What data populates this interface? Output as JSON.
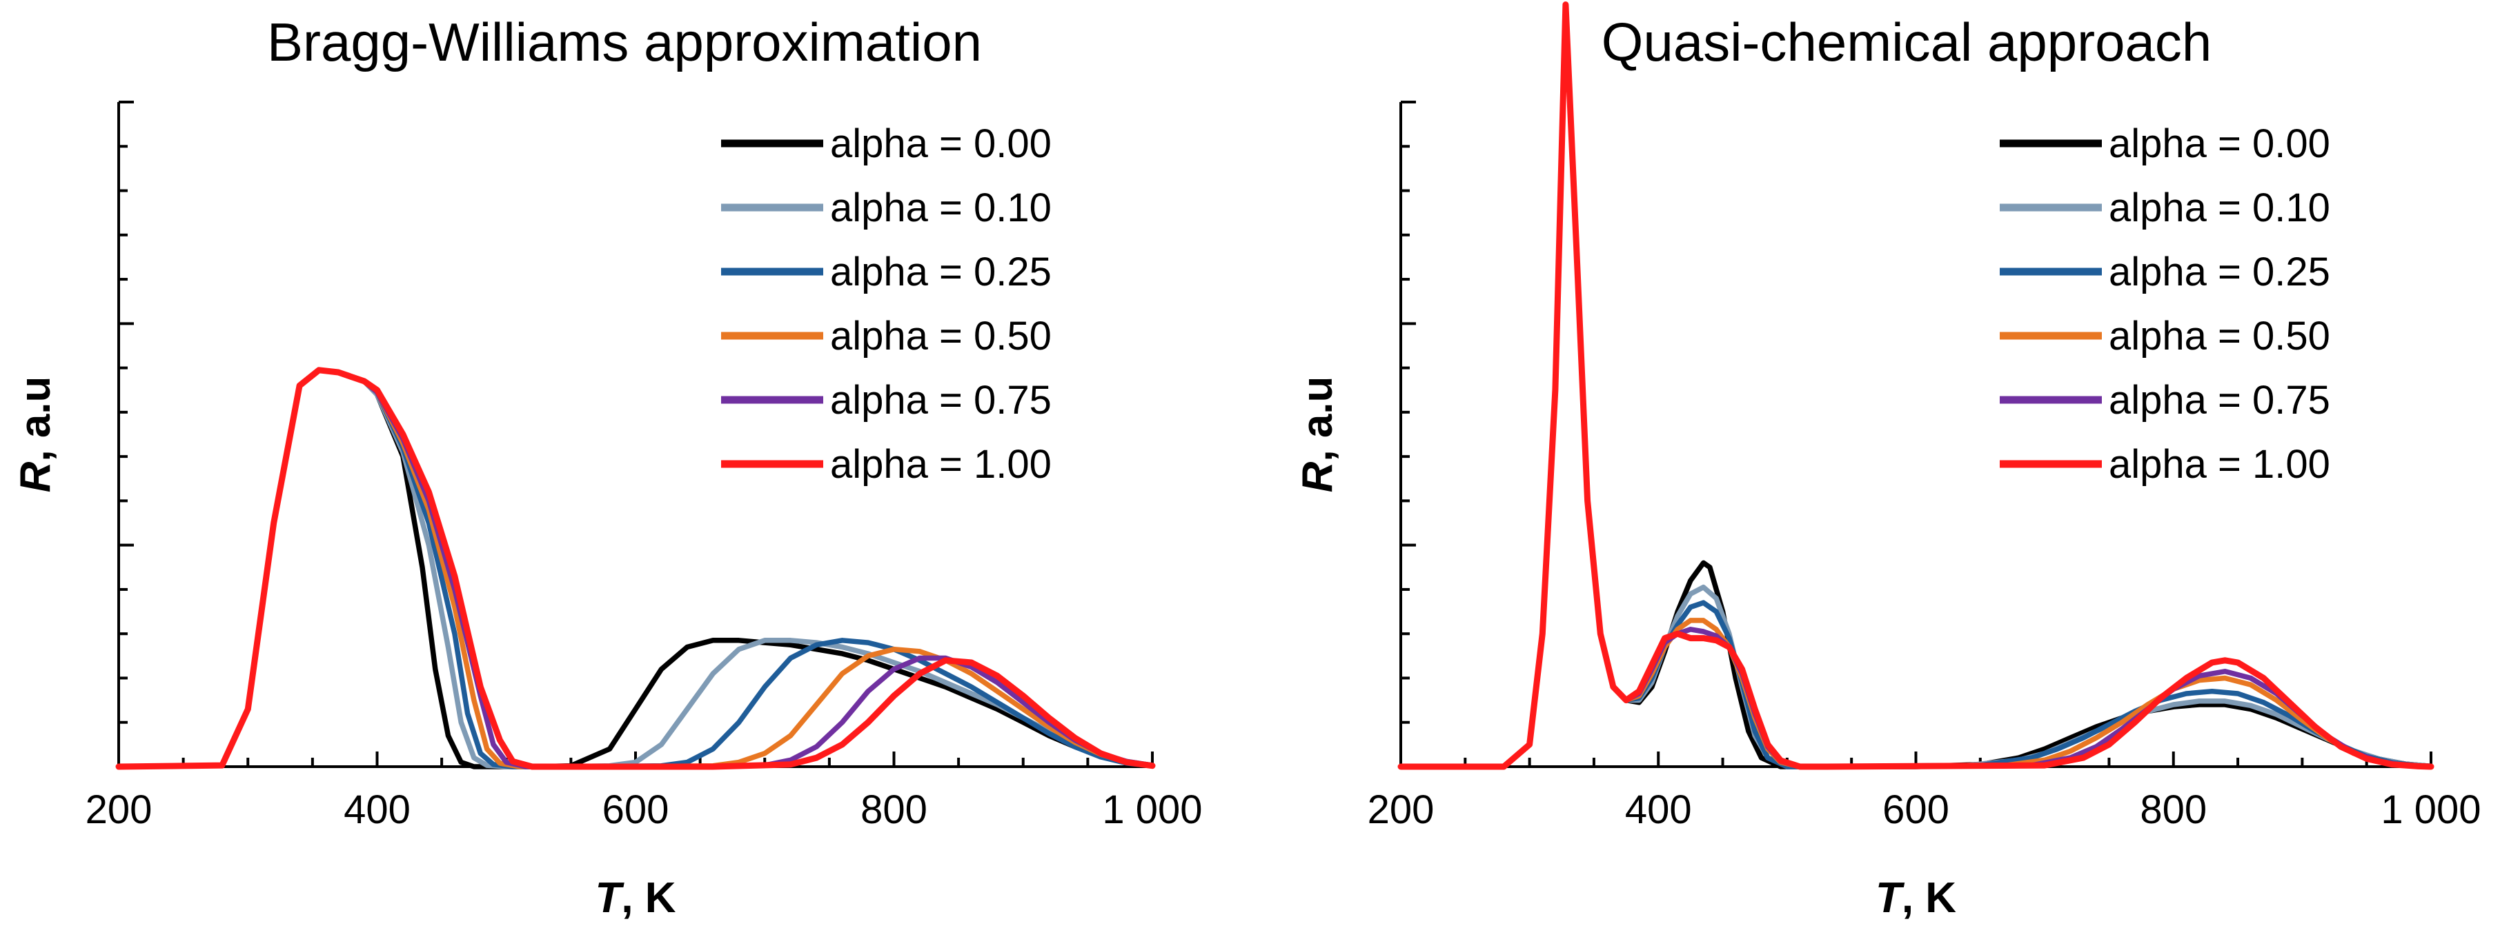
{
  "chart_data": [
    {
      "type": "line",
      "title": "Bragg-Williams approximation",
      "xlabel_italic": "T",
      "xlabel_rest": ", K",
      "ylabel_italic": "R",
      "ylabel_rest": ", a.u",
      "xlim": [
        200,
        1000
      ],
      "ylim": [
        0,
        1.5
      ],
      "xticks": [
        200,
        400,
        600,
        800,
        1000
      ],
      "xtick_labels": [
        "200",
        "400",
        "600",
        "800",
        "1 000"
      ],
      "legend_position": "top-right",
      "series": [
        {
          "name": "alpha = 0.00",
          "color": "#000000",
          "x": [
            200,
            280,
            300,
            320,
            340,
            355,
            370,
            390,
            400,
            420,
            435,
            445,
            455,
            465,
            475,
            490,
            520,
            550,
            580,
            600,
            620,
            640,
            660,
            680,
            700,
            720,
            740,
            760,
            780,
            800,
            820,
            840,
            860,
            880,
            900,
            920,
            940,
            960,
            980,
            1000
          ],
          "y": [
            0,
            0.003,
            0.13,
            0.55,
            0.86,
            0.895,
            0.89,
            0.87,
            0.84,
            0.7,
            0.45,
            0.22,
            0.07,
            0.01,
            0,
            0,
            0,
            0.002,
            0.04,
            0.13,
            0.22,
            0.27,
            0.285,
            0.285,
            0.28,
            0.275,
            0.265,
            0.255,
            0.24,
            0.22,
            0.2,
            0.18,
            0.155,
            0.13,
            0.1,
            0.07,
            0.045,
            0.025,
            0.01,
            0.003
          ]
        },
        {
          "name": "alpha = 0.10",
          "color": "#7f9bb5",
          "x": [
            200,
            280,
            300,
            320,
            340,
            355,
            370,
            390,
            400,
            420,
            440,
            455,
            465,
            475,
            485,
            500,
            540,
            580,
            600,
            620,
            640,
            660,
            680,
            700,
            720,
            740,
            760,
            780,
            800,
            820,
            840,
            860,
            880,
            900,
            920,
            940,
            960,
            980,
            1000
          ],
          "y": [
            0,
            0.003,
            0.13,
            0.55,
            0.86,
            0.895,
            0.89,
            0.87,
            0.84,
            0.71,
            0.5,
            0.27,
            0.1,
            0.02,
            0.003,
            0,
            0,
            0.002,
            0.01,
            0.05,
            0.13,
            0.21,
            0.265,
            0.285,
            0.285,
            0.28,
            0.27,
            0.255,
            0.235,
            0.215,
            0.19,
            0.165,
            0.14,
            0.11,
            0.08,
            0.05,
            0.028,
            0.012,
            0.003
          ]
        },
        {
          "name": "alpha = 0.25",
          "color": "#1f5d99",
          "x": [
            200,
            280,
            300,
            320,
            340,
            355,
            370,
            390,
            400,
            420,
            440,
            460,
            470,
            480,
            490,
            505,
            560,
            620,
            640,
            660,
            680,
            700,
            720,
            740,
            760,
            780,
            800,
            820,
            840,
            860,
            880,
            900,
            920,
            940,
            960,
            980,
            1000
          ],
          "y": [
            0,
            0.003,
            0.13,
            0.55,
            0.86,
            0.895,
            0.89,
            0.87,
            0.845,
            0.72,
            0.55,
            0.3,
            0.12,
            0.03,
            0.005,
            0,
            0,
            0.002,
            0.01,
            0.04,
            0.1,
            0.18,
            0.245,
            0.275,
            0.285,
            0.28,
            0.265,
            0.24,
            0.21,
            0.18,
            0.145,
            0.11,
            0.075,
            0.045,
            0.022,
            0.008,
            0.002
          ]
        },
        {
          "name": "alpha = 0.50",
          "color": "#e87722",
          "x": [
            200,
            280,
            300,
            320,
            340,
            355,
            370,
            390,
            400,
            420,
            440,
            460,
            475,
            485,
            495,
            510,
            600,
            660,
            680,
            700,
            720,
            740,
            760,
            780,
            800,
            820,
            840,
            860,
            880,
            900,
            920,
            940,
            960,
            980,
            1000
          ],
          "y": [
            0,
            0.003,
            0.13,
            0.55,
            0.86,
            0.895,
            0.89,
            0.87,
            0.845,
            0.73,
            0.58,
            0.36,
            0.15,
            0.04,
            0.008,
            0,
            0,
            0.002,
            0.01,
            0.03,
            0.07,
            0.14,
            0.21,
            0.25,
            0.265,
            0.26,
            0.24,
            0.21,
            0.17,
            0.13,
            0.09,
            0.055,
            0.028,
            0.01,
            0.003
          ]
        },
        {
          "name": "alpha = 0.75",
          "color": "#7030a0",
          "x": [
            200,
            280,
            300,
            320,
            340,
            355,
            370,
            390,
            400,
            420,
            440,
            460,
            480,
            490,
            500,
            515,
            640,
            700,
            720,
            740,
            760,
            780,
            800,
            820,
            840,
            860,
            880,
            900,
            920,
            940,
            960,
            980,
            1000
          ],
          "y": [
            0,
            0.003,
            0.13,
            0.55,
            0.86,
            0.895,
            0.89,
            0.87,
            0.845,
            0.74,
            0.6,
            0.4,
            0.16,
            0.05,
            0.01,
            0,
            0,
            0.003,
            0.015,
            0.045,
            0.1,
            0.17,
            0.22,
            0.245,
            0.245,
            0.225,
            0.19,
            0.145,
            0.1,
            0.06,
            0.03,
            0.012,
            0.003
          ]
        },
        {
          "name": "alpha = 1.00",
          "color": "#ff1a1a",
          "x": [
            200,
            280,
            300,
            320,
            340,
            355,
            370,
            390,
            400,
            420,
            440,
            460,
            480,
            495,
            505,
            520,
            660,
            720,
            740,
            760,
            780,
            800,
            820,
            840,
            860,
            880,
            900,
            920,
            940,
            960,
            980,
            1000
          ],
          "y": [
            0,
            0.003,
            0.13,
            0.55,
            0.86,
            0.895,
            0.89,
            0.87,
            0.85,
            0.75,
            0.62,
            0.43,
            0.18,
            0.06,
            0.012,
            0,
            0,
            0.005,
            0.02,
            0.05,
            0.1,
            0.16,
            0.21,
            0.24,
            0.235,
            0.205,
            0.16,
            0.11,
            0.065,
            0.03,
            0.01,
            0.002
          ]
        }
      ]
    },
    {
      "type": "line",
      "title": "Quasi-chemical approach",
      "xlabel_italic": "T",
      "xlabel_rest": ", K",
      "ylabel_italic": "R",
      "ylabel_rest": ", a.u",
      "xlim": [
        200,
        1000
      ],
      "ylim": [
        0,
        1.5
      ],
      "xticks": [
        200,
        400,
        600,
        800,
        1000
      ],
      "xtick_labels": [
        "200",
        "400",
        "600",
        "800",
        "1 000"
      ],
      "legend_position": "top-right",
      "series": [
        {
          "name": "alpha = 0.00",
          "color": "#000000",
          "x": [
            200,
            280,
            300,
            310,
            320,
            328,
            336,
            345,
            355,
            365,
            375,
            385,
            395,
            405,
            415,
            425,
            435,
            440,
            450,
            460,
            470,
            480,
            495,
            520,
            600,
            650,
            680,
            700,
            720,
            740,
            760,
            780,
            800,
            820,
            840,
            860,
            880,
            900,
            920,
            940,
            960,
            980,
            1000
          ],
          "y": [
            0,
            0,
            0.05,
            0.3,
            0.85,
            1.72,
            1.2,
            0.6,
            0.3,
            0.18,
            0.15,
            0.145,
            0.18,
            0.26,
            0.35,
            0.42,
            0.46,
            0.45,
            0.35,
            0.2,
            0.08,
            0.02,
            0,
            0,
            0,
            0.005,
            0.02,
            0.04,
            0.065,
            0.09,
            0.11,
            0.125,
            0.135,
            0.14,
            0.14,
            0.13,
            0.11,
            0.085,
            0.06,
            0.035,
            0.017,
            0.006,
            0.001
          ]
        },
        {
          "name": "alpha = 0.10",
          "color": "#7f9bb5",
          "x": [
            200,
            280,
            300,
            310,
            320,
            328,
            336,
            345,
            355,
            365,
            375,
            385,
            395,
            405,
            415,
            425,
            435,
            445,
            455,
            465,
            475,
            485,
            500,
            520,
            640,
            680,
            700,
            720,
            740,
            760,
            780,
            800,
            820,
            840,
            860,
            880,
            900,
            920,
            940,
            960,
            980,
            1000
          ],
          "y": [
            0,
            0,
            0.05,
            0.3,
            0.85,
            1.72,
            1.2,
            0.6,
            0.3,
            0.18,
            0.15,
            0.15,
            0.19,
            0.27,
            0.34,
            0.39,
            0.405,
            0.38,
            0.3,
            0.18,
            0.07,
            0.02,
            0,
            0,
            0.003,
            0.015,
            0.03,
            0.055,
            0.08,
            0.105,
            0.125,
            0.14,
            0.148,
            0.148,
            0.138,
            0.118,
            0.09,
            0.062,
            0.036,
            0.017,
            0.006,
            0.001
          ]
        },
        {
          "name": "alpha = 0.25",
          "color": "#1f5d99",
          "x": [
            200,
            280,
            300,
            310,
            320,
            328,
            336,
            345,
            355,
            365,
            375,
            385,
            395,
            405,
            415,
            425,
            435,
            445,
            455,
            465,
            475,
            485,
            500,
            520,
            650,
            690,
            710,
            730,
            750,
            770,
            790,
            810,
            830,
            850,
            870,
            890,
            910,
            930,
            950,
            970,
            990,
            1000
          ],
          "y": [
            0,
            0,
            0.05,
            0.3,
            0.85,
            1.72,
            1.2,
            0.6,
            0.3,
            0.18,
            0.15,
            0.155,
            0.2,
            0.27,
            0.32,
            0.36,
            0.37,
            0.35,
            0.29,
            0.19,
            0.08,
            0.02,
            0,
            0,
            0.003,
            0.02,
            0.04,
            0.065,
            0.095,
            0.125,
            0.15,
            0.165,
            0.17,
            0.165,
            0.145,
            0.115,
            0.08,
            0.048,
            0.023,
            0.009,
            0.002,
            0.001
          ]
        },
        {
          "name": "alpha = 0.50",
          "color": "#e87722",
          "x": [
            200,
            280,
            300,
            310,
            320,
            328,
            336,
            345,
            355,
            365,
            375,
            385,
            395,
            405,
            415,
            425,
            435,
            445,
            455,
            465,
            475,
            485,
            495,
            510,
            530,
            670,
            700,
            720,
            740,
            760,
            780,
            800,
            820,
            840,
            860,
            880,
            900,
            920,
            940,
            960,
            980,
            1000
          ],
          "y": [
            0,
            0,
            0.05,
            0.3,
            0.85,
            1.72,
            1.2,
            0.6,
            0.3,
            0.18,
            0.15,
            0.16,
            0.21,
            0.27,
            0.31,
            0.33,
            0.33,
            0.31,
            0.27,
            0.2,
            0.11,
            0.04,
            0.01,
            0,
            0,
            0.003,
            0.015,
            0.035,
            0.065,
            0.1,
            0.14,
            0.175,
            0.195,
            0.2,
            0.185,
            0.15,
            0.105,
            0.063,
            0.03,
            0.012,
            0.003,
            0.001
          ]
        },
        {
          "name": "alpha = 0.75",
          "color": "#7030a0",
          "x": [
            200,
            280,
            300,
            310,
            320,
            328,
            336,
            345,
            355,
            365,
            375,
            385,
            395,
            405,
            415,
            425,
            435,
            445,
            455,
            465,
            475,
            485,
            495,
            510,
            530,
            690,
            720,
            740,
            760,
            780,
            800,
            820,
            840,
            860,
            880,
            900,
            920,
            940,
            960,
            980,
            1000
          ],
          "y": [
            0,
            0,
            0.05,
            0.3,
            0.85,
            1.72,
            1.2,
            0.6,
            0.3,
            0.18,
            0.15,
            0.165,
            0.22,
            0.28,
            0.3,
            0.31,
            0.305,
            0.295,
            0.27,
            0.21,
            0.12,
            0.045,
            0.012,
            0,
            0,
            0.003,
            0.02,
            0.045,
            0.085,
            0.13,
            0.175,
            0.205,
            0.215,
            0.2,
            0.165,
            0.115,
            0.068,
            0.032,
            0.012,
            0.003,
            0.001
          ]
        },
        {
          "name": "alpha = 1.00",
          "color": "#ff1a1a",
          "x": [
            200,
            280,
            300,
            310,
            320,
            328,
            336,
            345,
            355,
            365,
            375,
            385,
            395,
            405,
            415,
            425,
            435,
            445,
            455,
            465,
            475,
            485,
            495,
            510,
            530,
            700,
            730,
            750,
            770,
            790,
            810,
            830,
            840,
            850,
            870,
            890,
            910,
            930,
            950,
            970,
            990,
            1000
          ],
          "y": [
            0,
            0,
            0.05,
            0.3,
            0.85,
            1.72,
            1.2,
            0.6,
            0.3,
            0.18,
            0.15,
            0.17,
            0.23,
            0.29,
            0.3,
            0.29,
            0.29,
            0.285,
            0.27,
            0.22,
            0.13,
            0.05,
            0.014,
            0,
            0,
            0.003,
            0.02,
            0.05,
            0.1,
            0.155,
            0.2,
            0.235,
            0.24,
            0.235,
            0.2,
            0.145,
            0.09,
            0.045,
            0.018,
            0.005,
            0.001,
            0
          ]
        }
      ]
    }
  ]
}
